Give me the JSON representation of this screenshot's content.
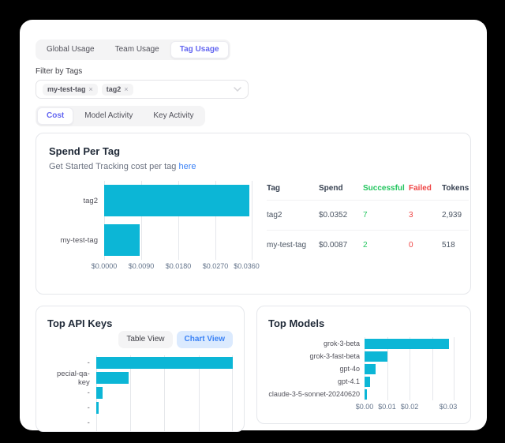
{
  "colors": {
    "bar": "#0cb6d6",
    "accent": "#6366f1",
    "link": "#3b82f6",
    "green": "#22c55e",
    "red": "#ef4444",
    "chartview_bg": "#dbeafe"
  },
  "tabs_primary": {
    "items": [
      {
        "label": "Global Usage",
        "active": false
      },
      {
        "label": "Team Usage",
        "active": false
      },
      {
        "label": "Tag Usage",
        "active": true
      }
    ]
  },
  "filter": {
    "label": "Filter by Tags",
    "chips": [
      {
        "label": "my-test-tag"
      },
      {
        "label": "tag2"
      }
    ],
    "remove_glyph": "×"
  },
  "tabs_secondary": {
    "items": [
      {
        "label": "Cost",
        "active": true
      },
      {
        "label": "Model Activity",
        "active": false
      },
      {
        "label": "Key Activity",
        "active": false
      }
    ]
  },
  "spend_card": {
    "title": "Spend Per Tag",
    "subtitle": "Get Started Tracking cost per tag",
    "subtitle_link": "here",
    "table": {
      "headers": {
        "tag": "Tag",
        "spend": "Spend",
        "successful": "Successful",
        "failed": "Failed",
        "tokens": "Tokens"
      },
      "rows": [
        {
          "tag": "tag2",
          "spend": "$0.0352",
          "successful": "7",
          "failed": "3",
          "tokens": "2,939"
        },
        {
          "tag": "my-test-tag",
          "spend": "$0.0087",
          "successful": "2",
          "failed": "0",
          "tokens": "518"
        }
      ]
    }
  },
  "api_keys_card": {
    "title": "Top API Keys",
    "table_view_label": "Table View",
    "chart_view_label": "Chart View"
  },
  "models_card": {
    "title": "Top Models"
  },
  "chart_data": [
    {
      "id": "spend-per-tag",
      "type": "bar",
      "orientation": "horizontal",
      "title": "Spend Per Tag",
      "categories": [
        "tag2",
        "my-test-tag"
      ],
      "values": [
        0.0352,
        0.0087
      ],
      "axis_max": 0.036,
      "xlim": [
        0,
        0.036
      ],
      "grid": true,
      "ticks": [
        {
          "label": "$0.0000",
          "pos": 0
        },
        {
          "label": "$0.0090",
          "pos": 25
        },
        {
          "label": "$0.0180",
          "pos": 50
        },
        {
          "label": "$0.0270",
          "pos": 75
        },
        {
          "label": "$0.0360",
          "pos": 96
        }
      ]
    },
    {
      "id": "top-api-keys",
      "type": "bar",
      "orientation": "horizontal",
      "title": "Top API Keys",
      "categories": [
        "-",
        "pecial-qa-key",
        "-",
        "-",
        "-"
      ],
      "values": [
        1.0,
        0.24,
        0.05,
        0.02,
        0
      ],
      "axis_max": 1.0,
      "grid": true,
      "x_axis_visible": false,
      "ticks": []
    },
    {
      "id": "top-models",
      "type": "bar",
      "orientation": "horizontal",
      "title": "Top Models",
      "categories": [
        "grok-3-beta",
        "grok-3-fast-beta",
        "gpt-4o",
        "gpt-4.1",
        "claude-3-5-sonnet-20240620"
      ],
      "values": [
        0.03,
        0.008,
        0.004,
        0.002,
        0.0008
      ],
      "axis_max": 0.032,
      "xlim": [
        0,
        0.032
      ],
      "grid": true,
      "ticks": [
        {
          "label": "$0.00",
          "pos": 0
        },
        {
          "label": "$0.01",
          "pos": 25
        },
        {
          "label": "$0.02",
          "pos": 50
        },
        {
          "label": "$0.03",
          "pos": 93
        }
      ]
    }
  ]
}
